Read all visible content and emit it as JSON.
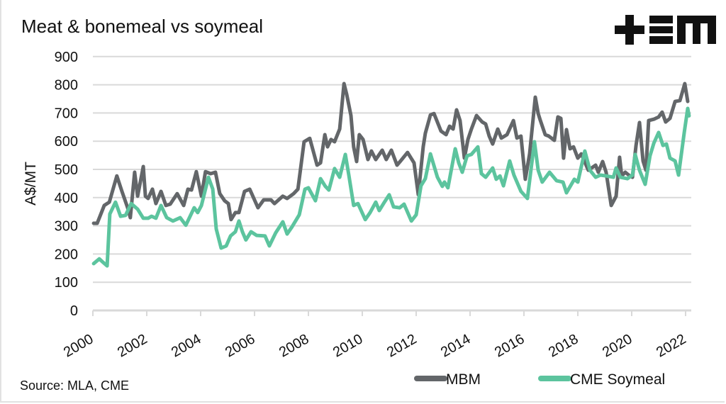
{
  "chart_data": {
    "type": "line",
    "title": "Meat & bonemeal vs soymeal",
    "xlabel": "",
    "ylabel": "A$/MT",
    "ylim": [
      0,
      900
    ],
    "yticks": [
      0,
      100,
      200,
      300,
      400,
      500,
      600,
      700,
      800,
      900
    ],
    "xlim": [
      2000,
      2022.2
    ],
    "xticks": [
      2000,
      2002,
      2004,
      2006,
      2008,
      2010,
      2012,
      2014,
      2016,
      2018,
      2020,
      2022
    ],
    "grid": "horizontal",
    "legend_position": "bottom-right",
    "source": "Source: MLA, CME",
    "colors": {
      "MBM": "#636669",
      "CME Soymeal": "#5cc49e"
    },
    "series": [
      {
        "name": "MBM",
        "points": [
          [
            2000.03,
            309
          ],
          [
            2000.16,
            309
          ],
          [
            2000.42,
            372
          ],
          [
            2000.61,
            384
          ],
          [
            2000.89,
            477
          ],
          [
            2001.08,
            422
          ],
          [
            2001.29,
            364
          ],
          [
            2001.39,
            329
          ],
          [
            2001.55,
            490
          ],
          [
            2001.66,
            405
          ],
          [
            2001.87,
            510
          ],
          [
            2001.95,
            405
          ],
          [
            2002.05,
            397
          ],
          [
            2002.21,
            430
          ],
          [
            2002.34,
            379
          ],
          [
            2002.53,
            422
          ],
          [
            2002.71,
            372
          ],
          [
            2002.87,
            377
          ],
          [
            2003.13,
            414
          ],
          [
            2003.37,
            372
          ],
          [
            2003.53,
            430
          ],
          [
            2003.66,
            427
          ],
          [
            2003.84,
            492
          ],
          [
            2004.03,
            405
          ],
          [
            2004.18,
            492
          ],
          [
            2004.37,
            485
          ],
          [
            2004.55,
            490
          ],
          [
            2004.71,
            414
          ],
          [
            2004.89,
            389
          ],
          [
            2005.03,
            379
          ],
          [
            2005.13,
            322
          ],
          [
            2005.29,
            347
          ],
          [
            2005.42,
            347
          ],
          [
            2005.63,
            422
          ],
          [
            2005.82,
            430
          ],
          [
            2006.13,
            364
          ],
          [
            2006.34,
            392
          ],
          [
            2006.61,
            392
          ],
          [
            2006.74,
            379
          ],
          [
            2007.05,
            405
          ],
          [
            2007.21,
            397
          ],
          [
            2007.45,
            414
          ],
          [
            2007.61,
            430
          ],
          [
            2007.84,
            598
          ],
          [
            2008.05,
            610
          ],
          [
            2008.18,
            565
          ],
          [
            2008.32,
            515
          ],
          [
            2008.45,
            523
          ],
          [
            2008.61,
            623
          ],
          [
            2008.71,
            580
          ],
          [
            2008.84,
            606
          ],
          [
            2008.97,
            598
          ],
          [
            2009.16,
            643
          ],
          [
            2009.32,
            804
          ],
          [
            2009.42,
            766
          ],
          [
            2009.58,
            691
          ],
          [
            2009.68,
            580
          ],
          [
            2009.79,
            528
          ],
          [
            2009.89,
            623
          ],
          [
            2010.03,
            606
          ],
          [
            2010.21,
            535
          ],
          [
            2010.34,
            565
          ],
          [
            2010.5,
            535
          ],
          [
            2010.74,
            568
          ],
          [
            2010.89,
            535
          ],
          [
            2011.08,
            568
          ],
          [
            2011.29,
            515
          ],
          [
            2011.42,
            530
          ],
          [
            2011.68,
            560
          ],
          [
            2011.92,
            523
          ],
          [
            2012.08,
            410
          ],
          [
            2012.26,
            580
          ],
          [
            2012.34,
            628
          ],
          [
            2012.53,
            693
          ],
          [
            2012.66,
            698
          ],
          [
            2012.92,
            636
          ],
          [
            2013.11,
            623
          ],
          [
            2013.24,
            653
          ],
          [
            2013.37,
            643
          ],
          [
            2013.5,
            711
          ],
          [
            2013.63,
            673
          ],
          [
            2013.79,
            540
          ],
          [
            2013.92,
            606
          ],
          [
            2014.05,
            643
          ],
          [
            2014.24,
            691
          ],
          [
            2014.45,
            668
          ],
          [
            2014.58,
            661
          ],
          [
            2014.71,
            618
          ],
          [
            2014.84,
            590
          ],
          [
            2015.03,
            643
          ],
          [
            2015.16,
            611
          ],
          [
            2015.37,
            623
          ],
          [
            2015.61,
            673
          ],
          [
            2015.74,
            611
          ],
          [
            2015.89,
            618
          ],
          [
            2016.05,
            465
          ],
          [
            2016.21,
            555
          ],
          [
            2016.42,
            756
          ],
          [
            2016.53,
            698
          ],
          [
            2016.61,
            673
          ],
          [
            2016.79,
            623
          ],
          [
            2016.92,
            618
          ],
          [
            2017.13,
            603
          ],
          [
            2017.26,
            686
          ],
          [
            2017.37,
            681
          ],
          [
            2017.47,
            540
          ],
          [
            2017.58,
            641
          ],
          [
            2017.71,
            573
          ],
          [
            2017.84,
            580
          ],
          [
            2018.0,
            540
          ],
          [
            2018.13,
            555
          ],
          [
            2018.39,
            497
          ],
          [
            2018.66,
            515
          ],
          [
            2018.76,
            490
          ],
          [
            2018.92,
            528
          ],
          [
            2019.05,
            490
          ],
          [
            2019.24,
            372
          ],
          [
            2019.42,
            405
          ],
          [
            2019.55,
            543
          ],
          [
            2019.63,
            477
          ],
          [
            2019.76,
            490
          ],
          [
            2019.89,
            480
          ],
          [
            2020.03,
            472
          ],
          [
            2020.16,
            585
          ],
          [
            2020.29,
            666
          ],
          [
            2020.42,
            530
          ],
          [
            2020.53,
            497
          ],
          [
            2020.63,
            673
          ],
          [
            2020.82,
            678
          ],
          [
            2021.0,
            686
          ],
          [
            2021.13,
            703
          ],
          [
            2021.26,
            668
          ],
          [
            2021.42,
            681
          ],
          [
            2021.61,
            741
          ],
          [
            2021.79,
            744
          ],
          [
            2021.97,
            804
          ],
          [
            2022.08,
            741
          ]
        ]
      },
      {
        "name": "CME Soymeal",
        "points": [
          [
            2000.03,
            166
          ],
          [
            2000.24,
            183
          ],
          [
            2000.37,
            171
          ],
          [
            2000.53,
            158
          ],
          [
            2000.63,
            342
          ],
          [
            2000.84,
            384
          ],
          [
            2001.03,
            334
          ],
          [
            2001.21,
            337
          ],
          [
            2001.42,
            379
          ],
          [
            2001.66,
            359
          ],
          [
            2001.87,
            327
          ],
          [
            2002.05,
            327
          ],
          [
            2002.18,
            334
          ],
          [
            2002.34,
            327
          ],
          [
            2002.53,
            372
          ],
          [
            2002.74,
            329
          ],
          [
            2002.97,
            317
          ],
          [
            2003.24,
            329
          ],
          [
            2003.45,
            302
          ],
          [
            2003.76,
            364
          ],
          [
            2003.89,
            347
          ],
          [
            2004.03,
            372
          ],
          [
            2004.29,
            472
          ],
          [
            2004.45,
            430
          ],
          [
            2004.58,
            289
          ],
          [
            2004.76,
            221
          ],
          [
            2004.95,
            229
          ],
          [
            2005.11,
            264
          ],
          [
            2005.29,
            279
          ],
          [
            2005.42,
            317
          ],
          [
            2005.55,
            279
          ],
          [
            2005.68,
            250
          ],
          [
            2005.87,
            279
          ],
          [
            2006.08,
            266
          ],
          [
            2006.39,
            264
          ],
          [
            2006.55,
            229
          ],
          [
            2006.79,
            276
          ],
          [
            2007.05,
            314
          ],
          [
            2007.21,
            271
          ],
          [
            2007.39,
            296
          ],
          [
            2007.66,
            339
          ],
          [
            2007.87,
            430
          ],
          [
            2008.0,
            435
          ],
          [
            2008.26,
            389
          ],
          [
            2008.45,
            467
          ],
          [
            2008.63,
            440
          ],
          [
            2008.76,
            427
          ],
          [
            2008.97,
            503
          ],
          [
            2009.16,
            472
          ],
          [
            2009.37,
            553
          ],
          [
            2009.5,
            480
          ],
          [
            2009.68,
            372
          ],
          [
            2009.84,
            379
          ],
          [
            2010.11,
            322
          ],
          [
            2010.29,
            347
          ],
          [
            2010.5,
            384
          ],
          [
            2010.63,
            354
          ],
          [
            2010.82,
            384
          ],
          [
            2011.0,
            410
          ],
          [
            2011.16,
            367
          ],
          [
            2011.39,
            364
          ],
          [
            2011.55,
            377
          ],
          [
            2011.82,
            317
          ],
          [
            2012.0,
            339
          ],
          [
            2012.18,
            442
          ],
          [
            2012.34,
            467
          ],
          [
            2012.53,
            555
          ],
          [
            2012.79,
            472
          ],
          [
            2012.97,
            440
          ],
          [
            2013.05,
            455
          ],
          [
            2013.18,
            435
          ],
          [
            2013.45,
            573
          ],
          [
            2013.58,
            523
          ],
          [
            2013.71,
            490
          ],
          [
            2013.89,
            548
          ],
          [
            2014.05,
            553
          ],
          [
            2014.29,
            580
          ],
          [
            2014.42,
            485
          ],
          [
            2014.58,
            472
          ],
          [
            2014.84,
            505
          ],
          [
            2014.97,
            465
          ],
          [
            2015.11,
            477
          ],
          [
            2015.24,
            442
          ],
          [
            2015.47,
            530
          ],
          [
            2015.63,
            480
          ],
          [
            2015.89,
            422
          ],
          [
            2016.13,
            397
          ],
          [
            2016.39,
            598
          ],
          [
            2016.53,
            497
          ],
          [
            2016.68,
            455
          ],
          [
            2016.95,
            490
          ],
          [
            2017.21,
            460
          ],
          [
            2017.45,
            455
          ],
          [
            2017.58,
            417
          ],
          [
            2017.87,
            465
          ],
          [
            2018.0,
            455
          ],
          [
            2018.26,
            565
          ],
          [
            2018.45,
            497
          ],
          [
            2018.66,
            472
          ],
          [
            2018.84,
            480
          ],
          [
            2019.05,
            477
          ],
          [
            2019.32,
            472
          ],
          [
            2019.42,
            505
          ],
          [
            2019.58,
            472
          ],
          [
            2019.84,
            467
          ],
          [
            2020.03,
            480
          ],
          [
            2020.13,
            553
          ],
          [
            2020.29,
            497
          ],
          [
            2020.5,
            447
          ],
          [
            2020.68,
            548
          ],
          [
            2020.82,
            593
          ],
          [
            2021.0,
            631
          ],
          [
            2021.16,
            585
          ],
          [
            2021.29,
            590
          ],
          [
            2021.42,
            540
          ],
          [
            2021.61,
            530
          ],
          [
            2021.74,
            480
          ],
          [
            2021.95,
            631
          ],
          [
            2022.08,
            716
          ],
          [
            2022.13,
            690
          ]
        ]
      }
    ]
  },
  "logo": {
    "text": "+EM"
  }
}
